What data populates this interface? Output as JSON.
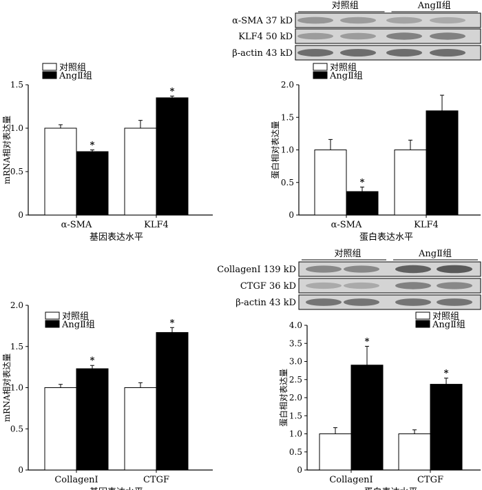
{
  "figure": {
    "legend": {
      "control": "对照组",
      "ang": "AngⅡ组"
    },
    "colors": {
      "control": "#ffffff",
      "ang": "#000000",
      "outline": "#000000",
      "blot_bg": "#d4d4d4",
      "band": "#5a5a5a"
    }
  },
  "blots": [
    {
      "groups": [
        "对照组",
        "AngⅡ组"
      ],
      "rows": [
        {
          "label": "α-SMA 37 kD",
          "intensity": [
            0.45,
            0.4,
            0.35,
            0.3
          ]
        },
        {
          "label": "KLF4 50 kD",
          "intensity": [
            0.4,
            0.4,
            0.6,
            0.6
          ]
        },
        {
          "label": "β-actin 43 kD",
          "intensity": [
            0.75,
            0.75,
            0.75,
            0.75
          ]
        }
      ]
    },
    {
      "groups": [
        "对照组",
        "AngⅡ组"
      ],
      "rows": [
        {
          "label": "CollagenⅠ 139 kD",
          "intensity": [
            0.55,
            0.55,
            0.85,
            0.9
          ]
        },
        {
          "label": "CTGF 36 kD",
          "intensity": [
            0.3,
            0.3,
            0.6,
            0.55
          ]
        },
        {
          "label": "β-actin 43 kD",
          "intensity": [
            0.7,
            0.7,
            0.7,
            0.7
          ]
        }
      ]
    }
  ],
  "chart_data": [
    {
      "type": "bar",
      "categories": [
        "α-SMA",
        "KLF4"
      ],
      "series": [
        {
          "name": "对照组",
          "values": [
            1.0,
            1.0
          ],
          "errors": [
            0.04,
            0.09
          ],
          "sig": [
            false,
            false
          ]
        },
        {
          "name": "AngⅡ组",
          "values": [
            0.73,
            1.35
          ],
          "errors": [
            0.02,
            0.02
          ],
          "sig": [
            true,
            true
          ]
        }
      ],
      "xlabel": "基因表达水平",
      "ylabel": "mRNA相对表达量",
      "ylim": [
        0,
        1.5
      ],
      "yticks": [
        "0",
        "0.5",
        "1.0",
        "1.5"
      ],
      "sig_mark": "*",
      "legend_position": "top-left"
    },
    {
      "type": "bar",
      "categories": [
        "α-SMA",
        "KLF4"
      ],
      "series": [
        {
          "name": "对照组",
          "values": [
            1.0,
            1.0
          ],
          "errors": [
            0.16,
            0.15
          ],
          "sig": [
            false,
            false
          ]
        },
        {
          "name": "AngⅡ组",
          "values": [
            0.36,
            1.6
          ],
          "errors": [
            0.07,
            0.24
          ],
          "sig": [
            true,
            false
          ]
        }
      ],
      "xlabel": "蛋白表达水平",
      "ylabel": "蛋白相对表达量",
      "ylim": [
        0,
        2.0
      ],
      "yticks": [
        "0",
        "0.5",
        "1.0",
        "1.5",
        "2.0"
      ],
      "sig_mark": "*",
      "legend_position": "top-left"
    },
    {
      "type": "bar",
      "categories": [
        "CollagenⅠ",
        "CTGF"
      ],
      "series": [
        {
          "name": "对照组",
          "values": [
            1.0,
            1.0
          ],
          "errors": [
            0.04,
            0.06
          ],
          "sig": [
            false,
            false
          ]
        },
        {
          "name": "AngⅡ组",
          "values": [
            1.23,
            1.67
          ],
          "errors": [
            0.04,
            0.06
          ],
          "sig": [
            true,
            true
          ]
        }
      ],
      "xlabel": "基因表达水平",
      "ylabel": "mRNA相对表达量",
      "ylim": [
        0,
        2.0
      ],
      "yticks": [
        "0",
        "0.5",
        "1.0",
        "1.5",
        "2.0"
      ],
      "sig_mark": "*",
      "legend_position": "top-left"
    },
    {
      "type": "bar",
      "categories": [
        "CollagenⅠ",
        "CTGF"
      ],
      "series": [
        {
          "name": "对照组",
          "values": [
            1.0,
            1.0
          ],
          "errors": [
            0.17,
            0.11
          ],
          "sig": [
            false,
            false
          ]
        },
        {
          "name": "AngⅡ组",
          "values": [
            2.9,
            2.37
          ],
          "errors": [
            0.52,
            0.17
          ],
          "sig": [
            true,
            true
          ]
        }
      ],
      "xlabel": "蛋白表达水平",
      "ylabel": "蛋白相对表达量",
      "ylim": [
        0,
        4.0
      ],
      "yticks": [
        "0",
        "0.5",
        "1.0",
        "1.5",
        "2.0",
        "2.5",
        "3.0",
        "3.5",
        "4.0"
      ],
      "sig_mark": "*",
      "legend_position": "top-right"
    }
  ]
}
